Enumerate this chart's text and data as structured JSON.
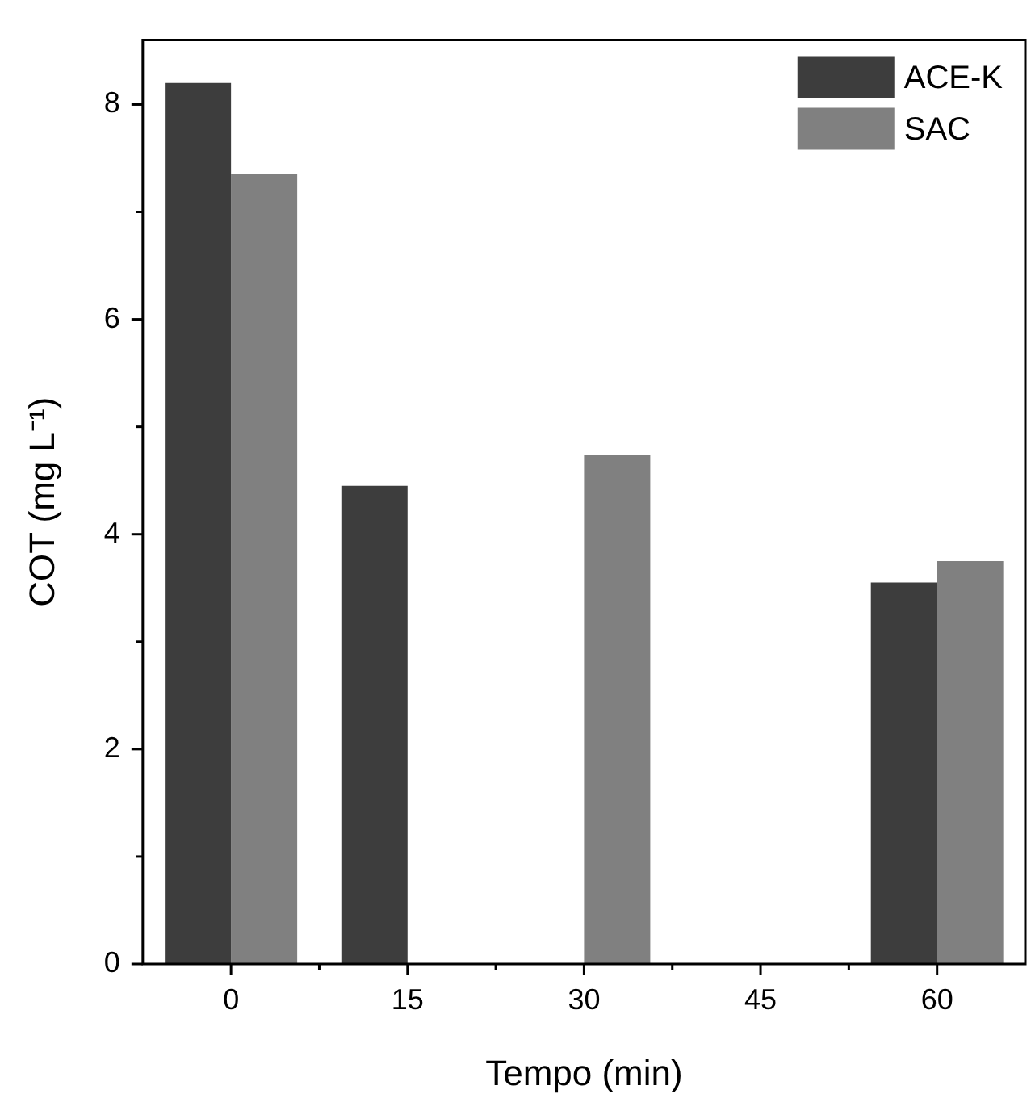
{
  "chart_data": {
    "type": "bar",
    "xlabel": "Tempo (min)",
    "ylabel": "COT (mg L⁻¹)",
    "categories": [
      "0",
      "15",
      "30",
      "45",
      "60"
    ],
    "series": [
      {
        "name": "ACE-K",
        "color": "#3d3d3d",
        "values": [
          8.2,
          4.45,
          null,
          null,
          3.55
        ]
      },
      {
        "name": "SAC",
        "color": "#808080",
        "values": [
          7.35,
          null,
          4.74,
          null,
          3.75
        ]
      }
    ],
    "ylim": [
      0,
      8.6
    ],
    "yticks": [
      0,
      {
        "value": 1,
        "label": null
      },
      2,
      {
        "value": 3,
        "label": null
      },
      4,
      {
        "value": 5,
        "label": null
      },
      6,
      {
        "value": 7,
        "label": null
      },
      8
    ],
    "grid": false,
    "legend": "top right"
  }
}
